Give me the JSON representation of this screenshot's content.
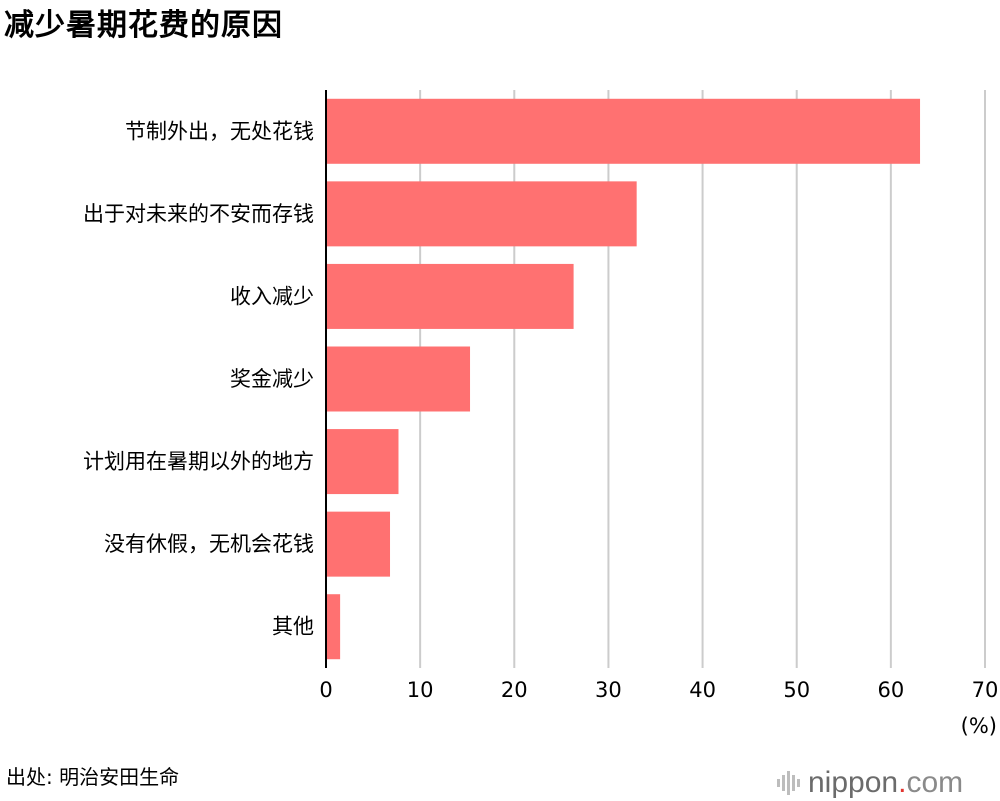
{
  "title": "减少暑期花费的原因",
  "source": "出处: 明治安田生命",
  "brand": {
    "name": "nippon",
    "dot": ".",
    "tld": "com"
  },
  "colors": {
    "bar": "#ff7171",
    "grid": "#cccccc",
    "axis": "#000000",
    "brand_dot": "#e2352f"
  },
  "chart_data": {
    "type": "bar",
    "orientation": "horizontal",
    "categories": [
      "节制外出，无处花钱",
      "出于对未来的不安而存钱",
      "收入减少",
      "奖金减少",
      "计划用在暑期以外的地方",
      "没有休假，无机会花钱",
      "其他"
    ],
    "values": [
      63.1,
      33.0,
      26.3,
      15.3,
      7.7,
      6.8,
      1.5
    ],
    "xlim": [
      0,
      70
    ],
    "x_ticks": [
      0,
      10,
      20,
      30,
      40,
      50,
      60,
      70
    ],
    "x_unit": "(%)",
    "grid": true
  }
}
